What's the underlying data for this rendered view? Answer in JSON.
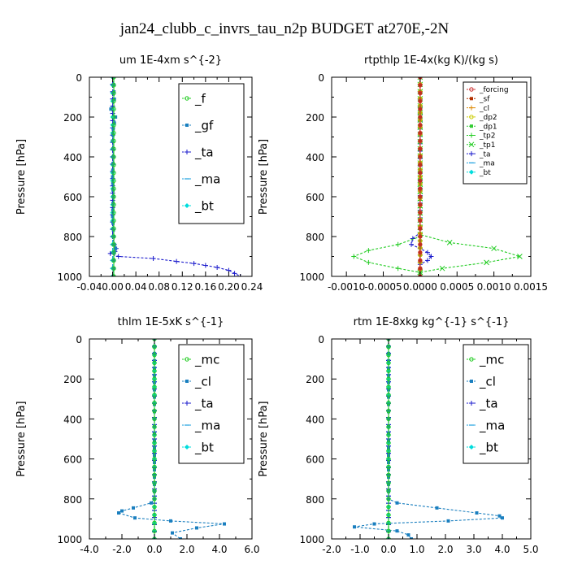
{
  "figure_title": "jan24_clubb_c_invrs_tau_n2p  BUDGET at270E,-2N",
  "chart_data": [
    {
      "type": "line",
      "title": "um   1E-4xm s^{-2}",
      "ylabel": "Pressure [hPa]",
      "xlim": [
        -0.04,
        0.24
      ],
      "xticks": [
        -0.04,
        0.0,
        0.04,
        0.08,
        0.12,
        0.16,
        0.2,
        0.24
      ],
      "xtick_labels": [
        "-0.04",
        "0.00",
        "0.04",
        "0.08",
        "0.12",
        "0.16",
        "0.20",
        "0.24"
      ],
      "ylim": [
        1000,
        0
      ],
      "yticks": [
        0,
        200,
        400,
        600,
        800,
        1000
      ],
      "ytick_labels": [
        "0",
        "200",
        "400",
        "600",
        "800",
        "1000"
      ],
      "legend_position": "top-right",
      "series": [
        {
          "name": "_f",
          "color": "#22cc22",
          "marker": "circle",
          "x": [
            0.002,
            0.002,
            0.002,
            0.002,
            0.002,
            0.002
          ],
          "y": [
            0,
            200,
            400,
            600,
            800,
            1000
          ]
        },
        {
          "name": "_gf",
          "color": "#1a7fbf",
          "marker": "square",
          "x": [
            0.001,
            0.003,
            -0.003,
            0.005,
            0.001,
            0.0,
            0.001,
            0.0,
            0.001,
            0.0,
            0.002,
            0.003,
            0.005,
            0.003,
            0.001
          ],
          "y": [
            0,
            110,
            160,
            200,
            260,
            320,
            400,
            500,
            600,
            700,
            800,
            840,
            860,
            880,
            1000
          ]
        },
        {
          "name": "_ta",
          "color": "#1a1acc",
          "marker": "plus",
          "x": [
            0,
            0,
            0.003,
            0.006,
            0.004,
            -0.004,
            0.01,
            0.07,
            0.11,
            0.14,
            0.16,
            0.18,
            0.2,
            0.21,
            0.22
          ],
          "y": [
            0,
            800,
            840,
            860,
            875,
            885,
            900,
            910,
            925,
            935,
            945,
            955,
            970,
            985,
            1000
          ]
        },
        {
          "name": "_ma",
          "color": "#1a9fdf",
          "marker": "dash",
          "x": [
            0.0,
            0.0,
            0.0,
            0.0
          ],
          "y": [
            0,
            400,
            800,
            1000
          ]
        },
        {
          "name": "_bt",
          "color": "#00dddd",
          "marker": "diamond",
          "x": [
            0.0,
            0.0,
            0.0,
            0.0,
            0.0,
            0.0
          ],
          "y": [
            0,
            200,
            400,
            600,
            800,
            1000
          ]
        }
      ]
    },
    {
      "type": "line",
      "title": "rtpthlp   1E-4x(kg K)/(kg s)",
      "ylabel": "Pressure [hPa]",
      "xlim": [
        -0.0012,
        0.0015
      ],
      "xticks": [
        -0.001,
        -0.0005,
        0.0,
        0.0005,
        0.001,
        0.0015
      ],
      "xtick_labels": [
        "-0.0010",
        "-0.0005",
        "0.0000",
        "0.0005",
        "0.0010",
        "0.0015"
      ],
      "ylim": [
        1000,
        0
      ],
      "yticks": [
        0,
        200,
        400,
        600,
        800,
        1000
      ],
      "ytick_labels": [
        "0",
        "200",
        "400",
        "600",
        "800",
        "1000"
      ],
      "legend_position": "top-right",
      "series": [
        {
          "name": "_forcing",
          "color": "#cc3333",
          "marker": "circle",
          "x": [
            0,
            0,
            0,
            0,
            0,
            0
          ],
          "y": [
            0,
            200,
            400,
            600,
            800,
            1000
          ]
        },
        {
          "name": "_sf",
          "color": "#b23000",
          "marker": "square",
          "x": [
            0,
            0,
            0,
            0,
            0,
            0
          ],
          "y": [
            0,
            200,
            400,
            600,
            800,
            1000
          ]
        },
        {
          "name": "_cl",
          "color": "#dd8800",
          "marker": "plus",
          "x": [
            0,
            0,
            0
          ],
          "y": [
            0,
            500,
            1000
          ]
        },
        {
          "name": "_dp2",
          "color": "#cccc00",
          "marker": "circle",
          "x": [
            0,
            0,
            0
          ],
          "y": [
            0,
            500,
            1000
          ]
        },
        {
          "name": "_dp1",
          "color": "#33cc33",
          "marker": "square",
          "x": [
            0,
            0,
            0
          ],
          "y": [
            0,
            500,
            1000
          ]
        },
        {
          "name": "_tp2",
          "color": "#22cc22",
          "marker": "plus",
          "x": [
            0,
            0,
            -0.0003,
            -0.0007,
            -0.0009,
            -0.0007,
            -0.0003,
            0,
            0
          ],
          "y": [
            0,
            800,
            840,
            870,
            900,
            930,
            960,
            980,
            1000
          ]
        },
        {
          "name": "_tp1",
          "color": "#22cc22",
          "marker": "cross",
          "x": [
            0,
            0,
            0.0004,
            0.001,
            0.00135,
            0.0009,
            0.0003,
            0,
            0
          ],
          "y": [
            0,
            790,
            830,
            860,
            900,
            930,
            960,
            980,
            1000
          ]
        },
        {
          "name": "_ta",
          "color": "#1a1acc",
          "marker": "plus",
          "x": [
            0,
            0,
            -0.0001,
            -0.00012,
            0,
            0.0001,
            0.00015,
            0.0001,
            0,
            0
          ],
          "y": [
            0,
            780,
            810,
            840,
            860,
            880,
            900,
            920,
            940,
            1000
          ]
        },
        {
          "name": "_ma",
          "color": "#1a9fdf",
          "marker": "dash",
          "x": [
            0,
            0,
            0
          ],
          "y": [
            0,
            500,
            1000
          ]
        },
        {
          "name": "_bt",
          "color": "#00dddd",
          "marker": "diamond",
          "x": [
            0,
            0,
            0
          ],
          "y": [
            0,
            500,
            1000
          ]
        }
      ]
    },
    {
      "type": "line",
      "title": "thlm   1E-5xK s^{-1}",
      "ylabel": "Pressure [hPa]",
      "xlim": [
        -4.0,
        6.0
      ],
      "xticks": [
        -4.0,
        -2.0,
        0.0,
        2.0,
        4.0,
        6.0
      ],
      "xtick_labels": [
        "-4.0",
        "-2.0",
        "0.0",
        "2.0",
        "4.0",
        "6.0"
      ],
      "ylim": [
        1000,
        0
      ],
      "yticks": [
        0,
        200,
        400,
        600,
        800,
        1000
      ],
      "ytick_labels": [
        "0",
        "200",
        "400",
        "600",
        "800",
        "1000"
      ],
      "legend_position": "top-right",
      "series": [
        {
          "name": "_mc",
          "color": "#22cc22",
          "marker": "circle",
          "x": [
            0,
            0,
            0,
            0,
            0,
            0
          ],
          "y": [
            0,
            200,
            400,
            600,
            800,
            1000
          ]
        },
        {
          "name": "_cl",
          "color": "#1a7fbf",
          "marker": "square",
          "x": [
            0,
            0,
            -0.2,
            -1.3,
            -2.0,
            -2.2,
            -1.2,
            1.0,
            4.3,
            2.6,
            1.1,
            1.6
          ],
          "y": [
            0,
            800,
            820,
            845,
            860,
            870,
            895,
            910,
            925,
            945,
            970,
            1000
          ]
        },
        {
          "name": "_ta",
          "color": "#1a1acc",
          "marker": "plus",
          "x": [
            0,
            0,
            0
          ],
          "y": [
            0,
            500,
            1000
          ]
        },
        {
          "name": "_ma",
          "color": "#1a9fdf",
          "marker": "dash",
          "x": [
            0,
            0,
            0
          ],
          "y": [
            0,
            500,
            1000
          ]
        },
        {
          "name": "_bt",
          "color": "#00dddd",
          "marker": "diamond",
          "x": [
            0,
            0,
            0,
            0,
            0,
            0
          ],
          "y": [
            0,
            200,
            400,
            600,
            800,
            1000
          ]
        }
      ]
    },
    {
      "type": "line",
      "title": "rtm   1E-8xkg kg^{-1} s^{-1}",
      "ylabel": "Pressure [hPa]",
      "xlim": [
        -2.0,
        5.0
      ],
      "xticks": [
        -2.0,
        -1.0,
        0.0,
        1.0,
        2.0,
        3.0,
        4.0,
        5.0
      ],
      "xtick_labels": [
        "-2.0",
        "-1.0",
        "0.0",
        "1.0",
        "2.0",
        "3.0",
        "4.0",
        "5.0"
      ],
      "ylim": [
        1000,
        0
      ],
      "yticks": [
        0,
        200,
        400,
        600,
        800,
        1000
      ],
      "ytick_labels": [
        "0",
        "200",
        "400",
        "600",
        "800",
        "1000"
      ],
      "legend_position": "top-right",
      "series": [
        {
          "name": "_mc",
          "color": "#22cc22",
          "marker": "circle",
          "x": [
            0,
            0,
            0,
            0,
            0,
            0
          ],
          "y": [
            0,
            200,
            400,
            600,
            800,
            1000
          ]
        },
        {
          "name": "_cl",
          "color": "#1a7fbf",
          "marker": "square",
          "x": [
            0,
            0,
            0.3,
            1.7,
            3.1,
            3.9,
            4.0,
            2.1,
            -0.5,
            -1.2,
            0.3,
            0.7,
            0.8
          ],
          "y": [
            0,
            800,
            820,
            845,
            870,
            885,
            895,
            910,
            925,
            940,
            960,
            980,
            1000
          ]
        },
        {
          "name": "_ta",
          "color": "#1a1acc",
          "marker": "plus",
          "x": [
            0,
            0,
            0
          ],
          "y": [
            0,
            500,
            1000
          ]
        },
        {
          "name": "_ma",
          "color": "#1a9fdf",
          "marker": "dash",
          "x": [
            0,
            0,
            0
          ],
          "y": [
            0,
            500,
            1000
          ]
        },
        {
          "name": "_bt",
          "color": "#00dddd",
          "marker": "diamond",
          "x": [
            0,
            0,
            0,
            0,
            0,
            0
          ],
          "y": [
            0,
            200,
            400,
            600,
            800,
            1000
          ]
        }
      ]
    }
  ]
}
